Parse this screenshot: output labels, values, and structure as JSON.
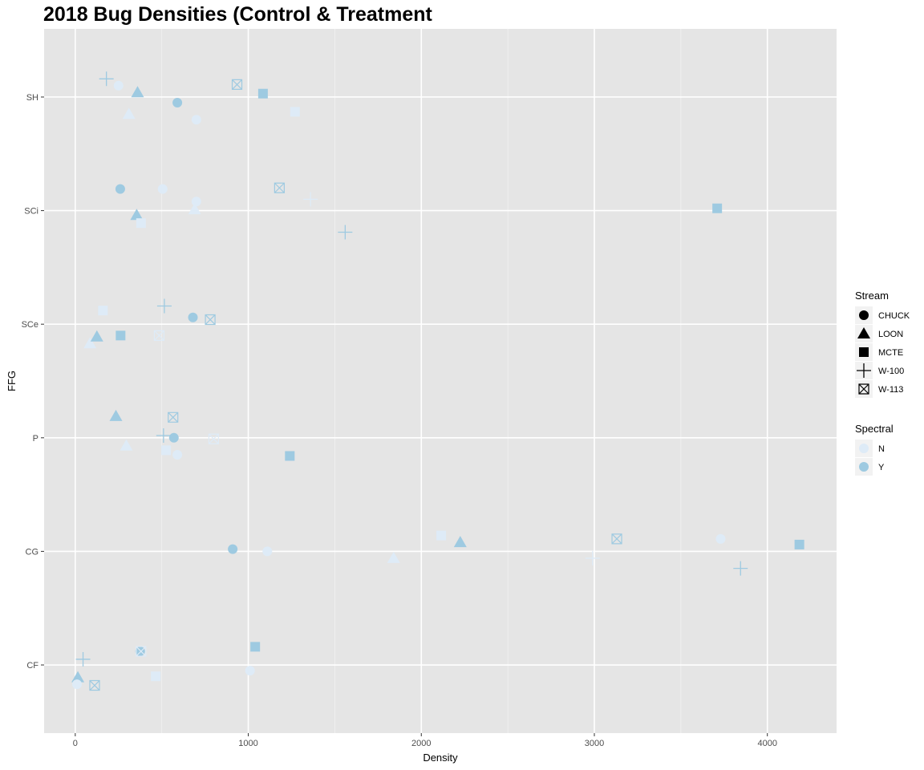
{
  "chart_data": {
    "type": "scatter",
    "title": "2018 Bug Densities (Control & Treatment",
    "xlabel": "Density",
    "ylabel": "FFG",
    "xlim": [
      -180,
      4400
    ],
    "x_ticks": [
      0,
      1000,
      2000,
      3000,
      4000
    ],
    "categories": [
      "CF",
      "CG",
      "P",
      "SCe",
      "SCi",
      "SH"
    ],
    "grid": true,
    "legend_position": "right",
    "legend_shape": {
      "title": "Stream",
      "items": [
        {
          "label": "CHUCK",
          "shape": "circle"
        },
        {
          "label": "LOON",
          "shape": "triangle"
        },
        {
          "label": "MCTE",
          "shape": "square"
        },
        {
          "label": "W-100",
          "shape": "plus"
        },
        {
          "label": "W-113",
          "shape": "boxed-x"
        }
      ]
    },
    "legend_color": {
      "title": "Spectral",
      "items": [
        {
          "label": "N",
          "color": "#deebf7"
        },
        {
          "label": "Y",
          "color": "#9ecae1"
        }
      ]
    },
    "points": [
      {
        "ffg": "SH",
        "x": 180,
        "jitter": 0.16,
        "stream": "W-100",
        "spectral": "Y"
      },
      {
        "ffg": "SH",
        "x": 250,
        "jitter": 0.1,
        "stream": "CHUCK",
        "spectral": "N"
      },
      {
        "ffg": "SH",
        "x": 360,
        "jitter": 0.04,
        "stream": "LOON",
        "spectral": "Y"
      },
      {
        "ffg": "SH",
        "x": 590,
        "jitter": -0.05,
        "stream": "CHUCK",
        "spectral": "Y"
      },
      {
        "ffg": "SH",
        "x": 310,
        "jitter": -0.15,
        "stream": "LOON",
        "spectral": "N"
      },
      {
        "ffg": "SH",
        "x": 700,
        "jitter": -0.2,
        "stream": "CHUCK",
        "spectral": "N"
      },
      {
        "ffg": "SH",
        "x": 935,
        "jitter": 0.11,
        "stream": "W-113",
        "spectral": "Y"
      },
      {
        "ffg": "SH",
        "x": 1085,
        "jitter": 0.03,
        "stream": "MCTE",
        "spectral": "Y"
      },
      {
        "ffg": "SH",
        "x": 1270,
        "jitter": -0.13,
        "stream": "MCTE",
        "spectral": "N"
      },
      {
        "ffg": "SCi",
        "x": 260,
        "jitter": 0.19,
        "stream": "CHUCK",
        "spectral": "Y"
      },
      {
        "ffg": "SCi",
        "x": 505,
        "jitter": 0.19,
        "stream": "CHUCK",
        "spectral": "N"
      },
      {
        "ffg": "SCi",
        "x": 700,
        "jitter": 0.08,
        "stream": "CHUCK",
        "spectral": "N"
      },
      {
        "ffg": "SCi",
        "x": 355,
        "jitter": -0.04,
        "stream": "LOON",
        "spectral": "Y"
      },
      {
        "ffg": "SCi",
        "x": 690,
        "jitter": 0.01,
        "stream": "LOON",
        "spectral": "N"
      },
      {
        "ffg": "SCi",
        "x": 380,
        "jitter": -0.11,
        "stream": "MCTE",
        "spectral": "N"
      },
      {
        "ffg": "SCi",
        "x": 1180,
        "jitter": 0.2,
        "stream": "W-113",
        "spectral": "Y"
      },
      {
        "ffg": "SCi",
        "x": 1360,
        "jitter": 0.1,
        "stream": "W-100",
        "spectral": "N"
      },
      {
        "ffg": "SCi",
        "x": 1560,
        "jitter": -0.19,
        "stream": "W-100",
        "spectral": "Y"
      },
      {
        "ffg": "SCi",
        "x": 3710,
        "jitter": 0.02,
        "stream": "MCTE",
        "spectral": "Y"
      },
      {
        "ffg": "SCe",
        "x": 160,
        "jitter": 0.12,
        "stream": "MCTE",
        "spectral": "N"
      },
      {
        "ffg": "SCe",
        "x": 515,
        "jitter": 0.16,
        "stream": "W-100",
        "spectral": "Y"
      },
      {
        "ffg": "SCe",
        "x": 680,
        "jitter": 0.06,
        "stream": "CHUCK",
        "spectral": "Y"
      },
      {
        "ffg": "SCe",
        "x": 780,
        "jitter": 0.04,
        "stream": "W-113",
        "spectral": "Y"
      },
      {
        "ffg": "SCe",
        "x": 85,
        "jitter": -0.17,
        "stream": "LOON",
        "spectral": "N"
      },
      {
        "ffg": "SCe",
        "x": 125,
        "jitter": -0.11,
        "stream": "LOON",
        "spectral": "Y"
      },
      {
        "ffg": "SCe",
        "x": 262,
        "jitter": -0.1,
        "stream": "MCTE",
        "spectral": "Y"
      },
      {
        "ffg": "SCe",
        "x": 485,
        "jitter": -0.1,
        "stream": "W-113",
        "spectral": "N"
      },
      {
        "ffg": "P",
        "x": 235,
        "jitter": 0.19,
        "stream": "LOON",
        "spectral": "Y"
      },
      {
        "ffg": "P",
        "x": 565,
        "jitter": 0.18,
        "stream": "W-113",
        "spectral": "Y"
      },
      {
        "ffg": "P",
        "x": 510,
        "jitter": 0.02,
        "stream": "W-100",
        "spectral": "Y"
      },
      {
        "ffg": "P",
        "x": 570,
        "jitter": 0.0,
        "stream": "CHUCK",
        "spectral": "Y"
      },
      {
        "ffg": "P",
        "x": 800,
        "jitter": -0.01,
        "stream": "W-113",
        "spectral": "N"
      },
      {
        "ffg": "P",
        "x": 295,
        "jitter": -0.07,
        "stream": "LOON",
        "spectral": "N"
      },
      {
        "ffg": "P",
        "x": 525,
        "jitter": -0.11,
        "stream": "MCTE",
        "spectral": "N"
      },
      {
        "ffg": "P",
        "x": 590,
        "jitter": -0.15,
        "stream": "CHUCK",
        "spectral": "N"
      },
      {
        "ffg": "P",
        "x": 1240,
        "jitter": -0.16,
        "stream": "MCTE",
        "spectral": "Y"
      },
      {
        "ffg": "CG",
        "x": 910,
        "jitter": 0.02,
        "stream": "CHUCK",
        "spectral": "Y"
      },
      {
        "ffg": "CG",
        "x": 1110,
        "jitter": 0.0,
        "stream": "CHUCK",
        "spectral": "N"
      },
      {
        "ffg": "CG",
        "x": 1840,
        "jitter": -0.06,
        "stream": "LOON",
        "spectral": "N"
      },
      {
        "ffg": "CG",
        "x": 2115,
        "jitter": 0.14,
        "stream": "MCTE",
        "spectral": "N"
      },
      {
        "ffg": "CG",
        "x": 2225,
        "jitter": 0.08,
        "stream": "LOON",
        "spectral": "Y"
      },
      {
        "ffg": "CG",
        "x": 2990,
        "jitter": -0.06,
        "stream": "W-100",
        "spectral": "N"
      },
      {
        "ffg": "CG",
        "x": 3130,
        "jitter": 0.11,
        "stream": "W-113",
        "spectral": "Y"
      },
      {
        "ffg": "CG",
        "x": 3730,
        "jitter": 0.11,
        "stream": "CHUCK",
        "spectral": "N"
      },
      {
        "ffg": "CG",
        "x": 3845,
        "jitter": -0.15,
        "stream": "W-100",
        "spectral": "Y"
      },
      {
        "ffg": "CG",
        "x": 4185,
        "jitter": 0.06,
        "stream": "MCTE",
        "spectral": "Y"
      },
      {
        "ffg": "CF",
        "x": 45,
        "jitter": 0.05,
        "stream": "W-100",
        "spectral": "Y"
      },
      {
        "ffg": "CF",
        "x": 375,
        "jitter": 0.12,
        "stream": "CHUCK",
        "spectral": "Y"
      },
      {
        "ffg": "CF",
        "x": 380,
        "jitter": 0.12,
        "stream": "W-113",
        "spectral": "N"
      },
      {
        "ffg": "CF",
        "x": 1040,
        "jitter": 0.16,
        "stream": "MCTE",
        "spectral": "Y"
      },
      {
        "ffg": "CF",
        "x": 1010,
        "jitter": -0.05,
        "stream": "CHUCK",
        "spectral": "N"
      },
      {
        "ffg": "CF",
        "x": 15,
        "jitter": -0.11,
        "stream": "LOON",
        "spectral": "Y"
      },
      {
        "ffg": "CF",
        "x": 10,
        "jitter": -0.17,
        "stream": "CHUCK",
        "spectral": "N"
      },
      {
        "ffg": "CF",
        "x": 465,
        "jitter": -0.1,
        "stream": "MCTE",
        "spectral": "N"
      },
      {
        "ffg": "CF",
        "x": 112,
        "jitter": -0.18,
        "stream": "W-113",
        "spectral": "Y"
      }
    ]
  }
}
